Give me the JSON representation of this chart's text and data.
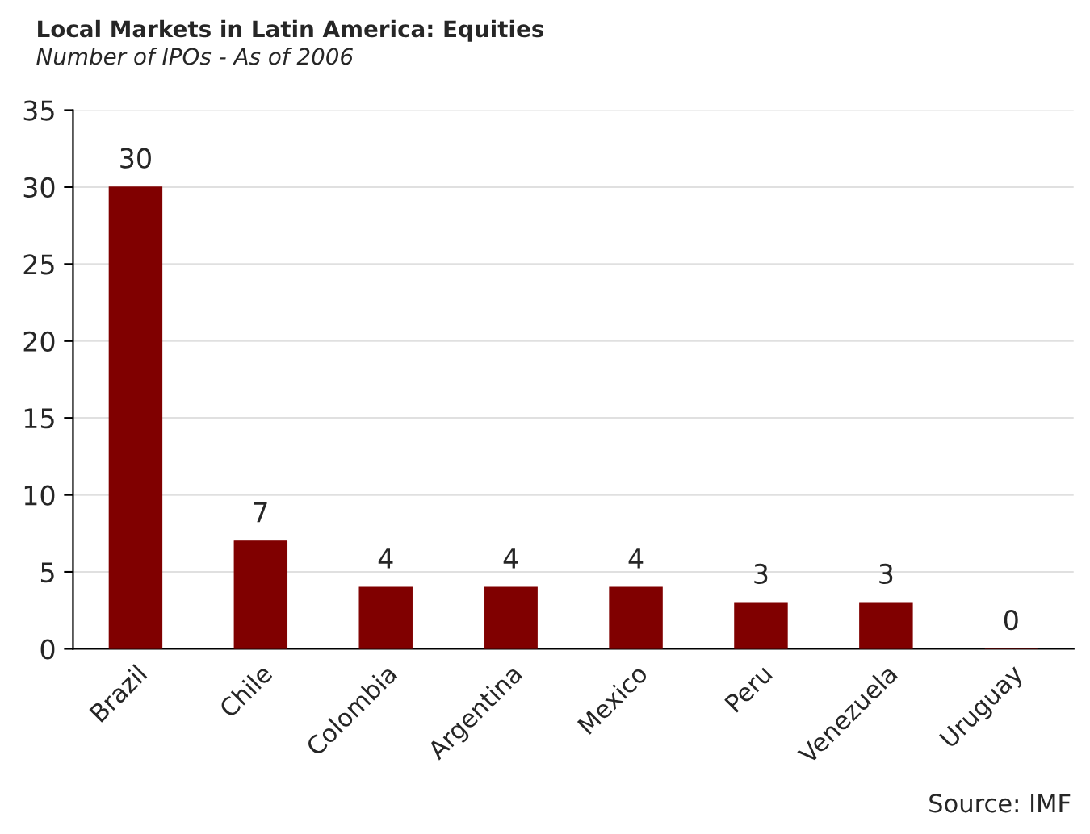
{
  "chart_data": {
    "type": "bar",
    "title": "Local Markets in Latin America: Equities",
    "subtitle": "Number of IPOs - As of 2006",
    "categories": [
      "Brazil",
      "Chile",
      "Colombia",
      "Argentina",
      "Mexico",
      "Peru",
      "Venezuela",
      "Uruguay"
    ],
    "values": [
      30,
      7,
      4,
      4,
      4,
      3,
      3,
      0
    ],
    "color": "#800000",
    "ylim": [
      0,
      35
    ],
    "yticks": [
      0,
      5,
      10,
      15,
      20,
      25,
      30,
      35
    ],
    "grid": "y",
    "data_labels": true,
    "annotations": [
      "Source: IMF"
    ]
  }
}
